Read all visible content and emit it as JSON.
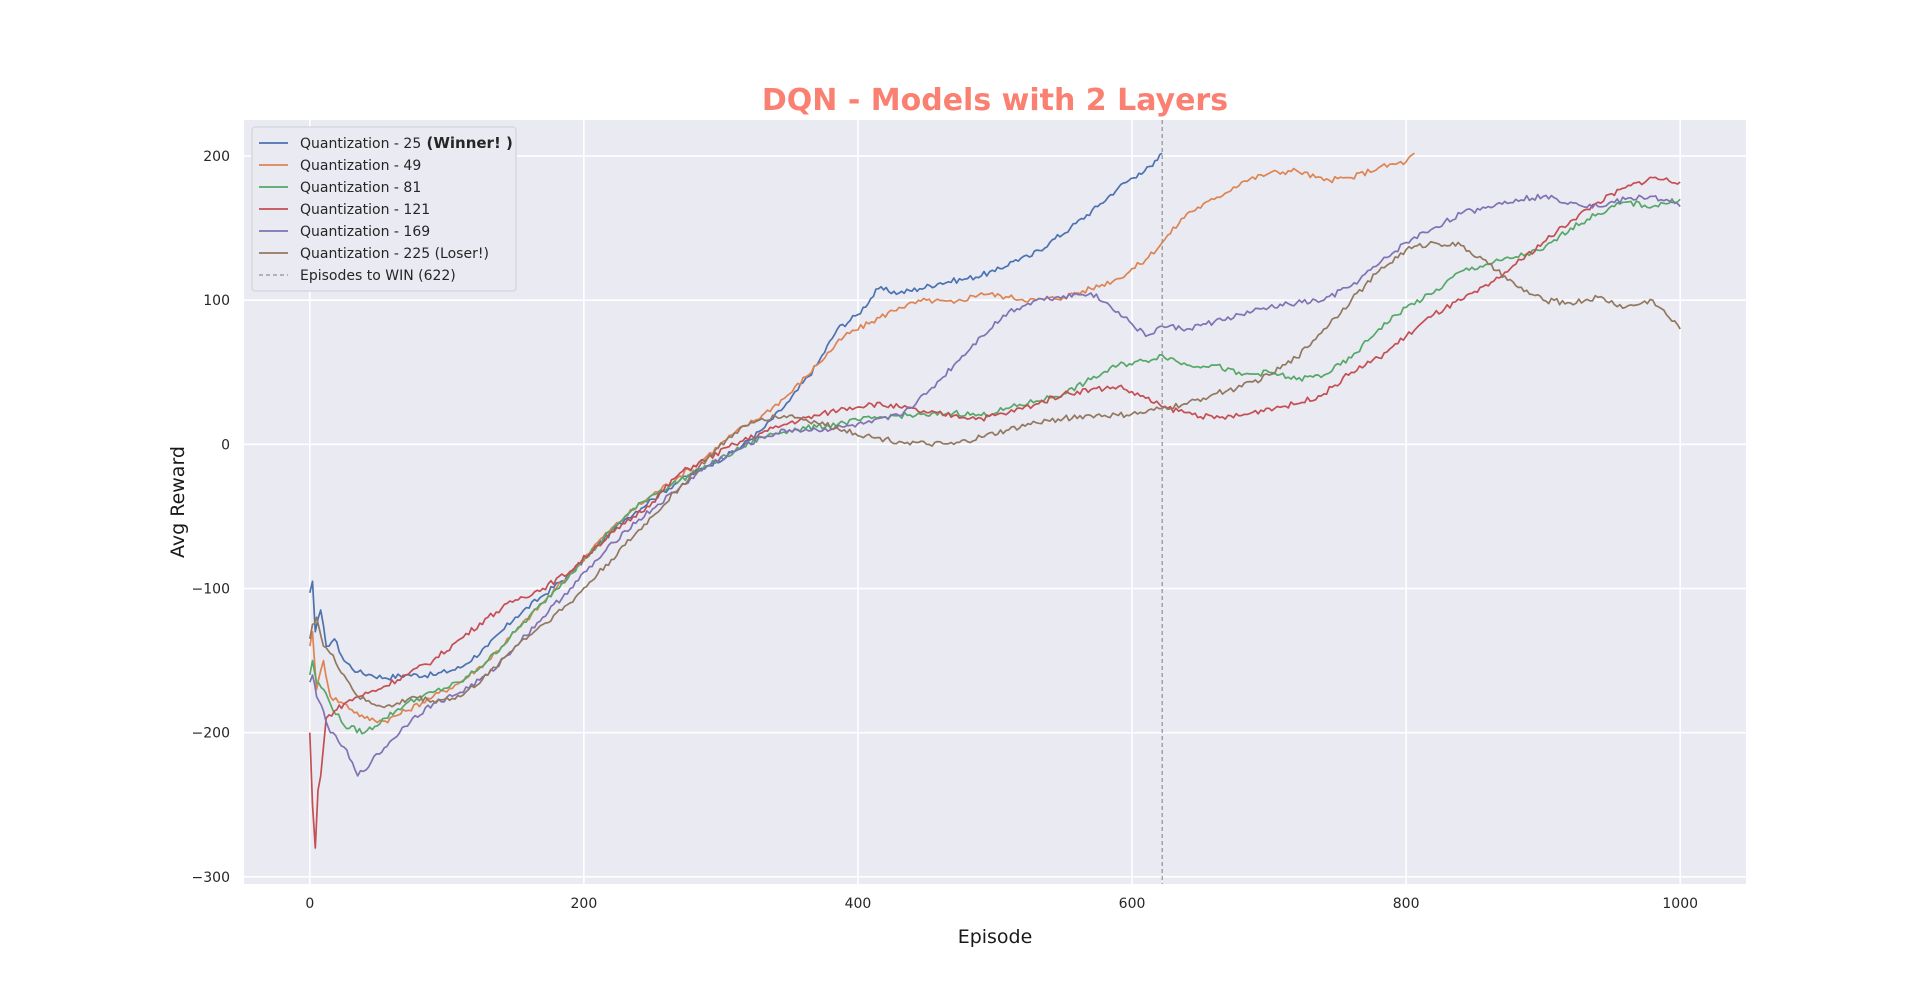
{
  "chart_data": {
    "type": "line",
    "title": "DQN - Models with 2 Layers",
    "title_color": "#FA8072",
    "xlabel": "Episode",
    "ylabel": "Avg Reward",
    "xlim": [
      -48,
      1048
    ],
    "ylim": [
      -305,
      225
    ],
    "xticks": [
      0,
      200,
      400,
      600,
      800,
      1000
    ],
    "yticks": [
      -300,
      -200,
      -100,
      0,
      100,
      200
    ],
    "grid": true,
    "background": "#EAEAF2",
    "legend_position": "top-left",
    "series": [
      {
        "name": "Quantization - 25",
        "name_suffix": "(Winner! )",
        "color": "#4C72B0",
        "x": [
          0,
          2,
          4,
          8,
          12,
          18,
          25,
          35,
          45,
          55,
          70,
          90,
          110,
          130,
          150,
          170,
          190,
          210,
          230,
          250,
          270,
          290,
          310,
          330,
          350,
          370,
          385,
          400,
          415,
          430,
          445,
          460,
          480,
          500,
          515,
          525,
          540,
          555,
          575,
          590,
          605,
          615,
          622
        ],
        "y": [
          -103,
          -95,
          -130,
          -115,
          -140,
          -135,
          -150,
          -158,
          -160,
          -162,
          -160,
          -160,
          -155,
          -140,
          -120,
          -105,
          -90,
          -70,
          -52,
          -38,
          -25,
          -15,
          -5,
          10,
          30,
          55,
          80,
          90,
          108,
          105,
          108,
          112,
          115,
          120,
          128,
          130,
          140,
          150,
          165,
          178,
          188,
          193,
          202
        ]
      },
      {
        "name": "Quantization - 49",
        "color": "#DD8452",
        "x": [
          0,
          2,
          5,
          10,
          15,
          25,
          40,
          55,
          70,
          90,
          110,
          130,
          150,
          170,
          190,
          210,
          230,
          250,
          270,
          290,
          310,
          330,
          350,
          370,
          390,
          410,
          430,
          450,
          470,
          490,
          510,
          530,
          550,
          570,
          590,
          610,
          622,
          640,
          660,
          680,
          700,
          720,
          740,
          760,
          780,
          800,
          806
        ],
        "y": [
          -140,
          -130,
          -170,
          -150,
          -175,
          -180,
          -190,
          -192,
          -185,
          -175,
          -165,
          -150,
          -130,
          -110,
          -90,
          -68,
          -50,
          -35,
          -22,
          -8,
          8,
          20,
          35,
          55,
          75,
          85,
          95,
          100,
          98,
          105,
          102,
          100,
          102,
          108,
          115,
          128,
          140,
          160,
          170,
          182,
          188,
          190,
          183,
          185,
          192,
          196,
          202
        ]
      },
      {
        "name": "Quantization - 81",
        "color": "#55A868",
        "x": [
          0,
          2,
          5,
          10,
          15,
          25,
          40,
          55,
          70,
          90,
          110,
          130,
          150,
          170,
          190,
          210,
          230,
          250,
          270,
          290,
          310,
          330,
          350,
          370,
          390,
          410,
          430,
          450,
          470,
          490,
          510,
          530,
          550,
          570,
          590,
          610,
          622,
          640,
          660,
          680,
          700,
          720,
          740,
          760,
          780,
          800,
          820,
          840,
          860,
          880,
          900,
          920,
          940,
          960,
          980,
          1000
        ],
        "y": [
          -160,
          -150,
          -165,
          -170,
          -180,
          -195,
          -200,
          -190,
          -180,
          -172,
          -165,
          -150,
          -130,
          -110,
          -90,
          -70,
          -50,
          -35,
          -25,
          -15,
          -5,
          5,
          10,
          12,
          15,
          18,
          20,
          20,
          22,
          20,
          25,
          30,
          35,
          45,
          55,
          58,
          62,
          55,
          55,
          48,
          50,
          45,
          48,
          60,
          80,
          95,
          105,
          120,
          125,
          130,
          135,
          150,
          160,
          168,
          165,
          170
        ]
      },
      {
        "name": "Quantization - 121",
        "color": "#C44E52",
        "x": [
          0,
          2,
          4,
          6,
          8,
          12,
          18,
          25,
          35,
          50,
          70,
          90,
          110,
          130,
          150,
          170,
          190,
          210,
          230,
          250,
          270,
          290,
          310,
          330,
          350,
          370,
          390,
          410,
          430,
          450,
          470,
          490,
          510,
          530,
          550,
          570,
          590,
          610,
          622,
          640,
          660,
          680,
          700,
          720,
          740,
          760,
          780,
          800,
          820,
          840,
          860,
          880,
          900,
          920,
          940,
          960,
          980,
          1000
        ],
        "y": [
          -200,
          -250,
          -280,
          -240,
          -230,
          -190,
          -185,
          -180,
          -175,
          -170,
          -160,
          -150,
          -135,
          -120,
          -108,
          -100,
          -88,
          -70,
          -55,
          -40,
          -20,
          -10,
          0,
          8,
          15,
          20,
          25,
          28,
          26,
          22,
          20,
          18,
          22,
          28,
          35,
          38,
          40,
          32,
          26,
          22,
          18,
          20,
          25,
          28,
          35,
          50,
          60,
          75,
          90,
          100,
          110,
          125,
          140,
          155,
          168,
          178,
          185,
          182
        ]
      },
      {
        "name": "Quantization - 169",
        "color": "#8172B3",
        "x": [
          0,
          2,
          5,
          10,
          15,
          25,
          35,
          45,
          60,
          75,
          90,
          110,
          130,
          150,
          170,
          190,
          210,
          230,
          250,
          270,
          290,
          310,
          330,
          350,
          370,
          390,
          410,
          430,
          450,
          470,
          490,
          510,
          530,
          550,
          570,
          590,
          610,
          622,
          640,
          660,
          680,
          700,
          720,
          740,
          760,
          780,
          800,
          820,
          840,
          860,
          880,
          900,
          920,
          940,
          960,
          980,
          1000
        ],
        "y": [
          -165,
          -160,
          -175,
          -185,
          -200,
          -210,
          -230,
          -220,
          -205,
          -190,
          -180,
          -172,
          -160,
          -140,
          -120,
          -100,
          -80,
          -60,
          -45,
          -30,
          -15,
          -5,
          5,
          10,
          10,
          12,
          15,
          20,
          35,
          55,
          75,
          92,
          100,
          103,
          105,
          92,
          75,
          82,
          80,
          85,
          90,
          95,
          98,
          100,
          110,
          125,
          140,
          150,
          160,
          165,
          170,
          172,
          168,
          165,
          170,
          172,
          165
        ]
      },
      {
        "name": "Quantization - 225 (Loser!)",
        "color": "#937860",
        "x": [
          0,
          2,
          5,
          10,
          15,
          25,
          35,
          45,
          60,
          75,
          90,
          110,
          130,
          150,
          170,
          190,
          210,
          230,
          250,
          270,
          290,
          310,
          330,
          350,
          370,
          390,
          410,
          430,
          450,
          470,
          490,
          510,
          530,
          550,
          570,
          590,
          610,
          622,
          640,
          660,
          680,
          700,
          720,
          740,
          760,
          780,
          800,
          820,
          840,
          860,
          880,
          900,
          920,
          940,
          960,
          980,
          1000
        ],
        "y": [
          -135,
          -125,
          -120,
          -140,
          -145,
          -160,
          -175,
          -180,
          -182,
          -175,
          -178,
          -175,
          -160,
          -140,
          -125,
          -110,
          -90,
          -70,
          -50,
          -30,
          -10,
          8,
          18,
          20,
          15,
          10,
          5,
          2,
          0,
          0,
          5,
          10,
          15,
          18,
          20,
          20,
          22,
          25,
          28,
          35,
          40,
          48,
          60,
          80,
          100,
          120,
          135,
          140,
          138,
          125,
          110,
          100,
          98,
          102,
          95,
          100,
          80
        ]
      }
    ],
    "vline": {
      "x": 622,
      "color": "#909090",
      "label": "Episodes to WIN (622)"
    }
  }
}
